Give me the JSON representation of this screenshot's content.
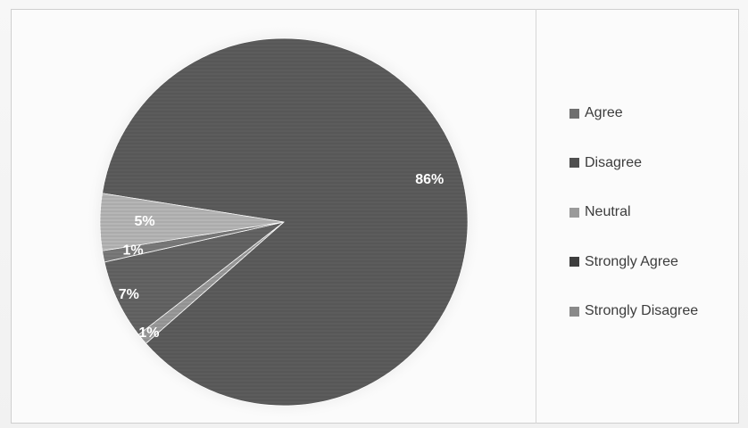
{
  "chart_data": {
    "type": "pie",
    "title": "",
    "legend_position": "right",
    "slices": [
      {
        "name": "Agree",
        "value": 86,
        "label": "86%",
        "color": "#5c5c5c"
      },
      {
        "name": "Disagree",
        "value": 1,
        "label": "1%",
        "color": "#9a9a9a"
      },
      {
        "name": "Neutral",
        "value": 7,
        "label": "7%",
        "color": "#646464"
      },
      {
        "name": "Strongly Agree",
        "value": 1,
        "label": "1%",
        "color": "#7a7a7a"
      },
      {
        "name": "Strongly Disagree",
        "value": 5,
        "label": "5%",
        "color": "#b6b6b6"
      }
    ],
    "legend": [
      {
        "name": "Agree",
        "color": "#6f6f6f"
      },
      {
        "name": "Disagree",
        "color": "#4f4f4f"
      },
      {
        "name": "Neutral",
        "color": "#9a9a9a"
      },
      {
        "name": "Strongly Agree",
        "color": "#3e3e3e"
      },
      {
        "name": "Strongly Disagree",
        "color": "#8a8a8a"
      }
    ]
  }
}
